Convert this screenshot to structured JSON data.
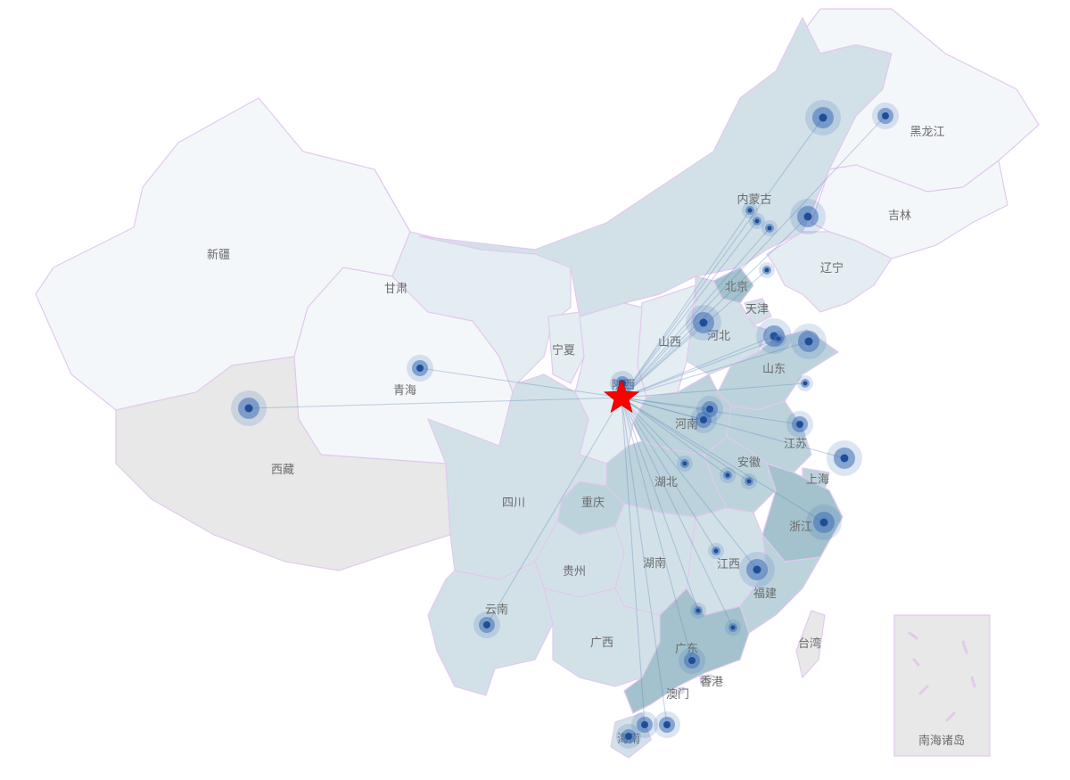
{
  "origin": {
    "name": "陕西",
    "icon": "star-icon",
    "color": "#ff0000"
  },
  "colors": {
    "route": "#5b86b8",
    "marker_core": "#1f4e99",
    "marker_ring": "#3f6fb5",
    "border": "#e2c9ee"
  },
  "provinces": [
    {
      "id": "xinjiang",
      "label": "新疆",
      "level": 1
    },
    {
      "id": "xizang",
      "label": "西藏",
      "level": 0
    },
    {
      "id": "qinghai",
      "label": "青海",
      "level": 1
    },
    {
      "id": "gansu",
      "label": "甘肃",
      "level": 2
    },
    {
      "id": "neimenggu",
      "label": "内蒙古",
      "level": 3
    },
    {
      "id": "heilongjiang",
      "label": "黑龙江",
      "level": 1
    },
    {
      "id": "jilin",
      "label": "吉林",
      "level": 1
    },
    {
      "id": "liaoning",
      "label": "辽宁",
      "level": 2
    },
    {
      "id": "beijing",
      "label": "北京",
      "level": 5
    },
    {
      "id": "tianjin",
      "label": "天津",
      "level": 3
    },
    {
      "id": "hebei",
      "label": "河北",
      "level": 3
    },
    {
      "id": "shanxi",
      "label": "山西",
      "level": 2
    },
    {
      "id": "ningxia",
      "label": "宁夏",
      "level": 2
    },
    {
      "id": "shaanxi",
      "label": "陕西",
      "level": 2
    },
    {
      "id": "shandong",
      "label": "山东",
      "level": 4
    },
    {
      "id": "henan",
      "label": "河南",
      "level": 4
    },
    {
      "id": "jiangsu",
      "label": "江苏",
      "level": 4
    },
    {
      "id": "anhui",
      "label": "安徽",
      "level": 4
    },
    {
      "id": "shanghai",
      "label": "上海",
      "level": 4
    },
    {
      "id": "zhejiang",
      "label": "浙江",
      "level": 5
    },
    {
      "id": "hubei",
      "label": "湖北",
      "level": 4
    },
    {
      "id": "chongqing",
      "label": "重庆",
      "level": 4
    },
    {
      "id": "sichuan",
      "label": "四川",
      "level": 3
    },
    {
      "id": "guizhou",
      "label": "贵州",
      "level": 3
    },
    {
      "id": "hunan",
      "label": "湖南",
      "level": 3
    },
    {
      "id": "jiangxi",
      "label": "江西",
      "level": 3
    },
    {
      "id": "fujian",
      "label": "福建",
      "level": 4
    },
    {
      "id": "yunnan",
      "label": "云南",
      "level": 3
    },
    {
      "id": "guangxi",
      "label": "广西",
      "level": 3
    },
    {
      "id": "guangdong",
      "label": "广东",
      "level": 5
    },
    {
      "id": "hainan",
      "label": "海南",
      "level": 3
    },
    {
      "id": "taiwan",
      "label": "台湾",
      "level": 0
    },
    {
      "id": "xianggang",
      "label": "香港",
      "level": 3
    },
    {
      "id": "aomen",
      "label": "澳门",
      "level": 3
    },
    {
      "id": "nanhai",
      "label": "南海诸岛",
      "level": 0
    }
  ],
  "level_colors": [
    "#e8e8e8",
    "#f4f7fa",
    "#e4edf2",
    "#d2e1e8",
    "#bcd3dc",
    "#a3c2cd"
  ],
  "destinations": [
    {
      "id": "d1",
      "size": "lg"
    },
    {
      "id": "d2",
      "size": "md"
    },
    {
      "id": "d3",
      "size": "lg"
    },
    {
      "id": "d4",
      "size": "sm"
    },
    {
      "id": "d5",
      "size": "sm"
    },
    {
      "id": "d6",
      "size": "sm"
    },
    {
      "id": "d7",
      "size": "sm"
    },
    {
      "id": "d8",
      "size": "lg"
    },
    {
      "id": "d9",
      "size": "lg"
    },
    {
      "id": "d10",
      "size": "lg"
    },
    {
      "id": "d11",
      "size": "sm"
    },
    {
      "id": "d12",
      "size": "sm"
    },
    {
      "id": "d13",
      "size": "md"
    },
    {
      "id": "d14",
      "size": "md"
    },
    {
      "id": "d15",
      "size": "md"
    },
    {
      "id": "d16",
      "size": "sm"
    },
    {
      "id": "d17",
      "size": "sm"
    },
    {
      "id": "d18",
      "size": "sm"
    },
    {
      "id": "d19",
      "size": "lg"
    },
    {
      "id": "d20",
      "size": "sm"
    },
    {
      "id": "d21",
      "size": "lg"
    },
    {
      "id": "d22",
      "size": "sm"
    },
    {
      "id": "d23",
      "size": "sm"
    },
    {
      "id": "d24",
      "size": "lg"
    },
    {
      "id": "d25",
      "size": "md"
    },
    {
      "id": "d26",
      "size": "md"
    },
    {
      "id": "d27",
      "size": "md"
    },
    {
      "id": "d28",
      "size": "lg"
    },
    {
      "id": "d29",
      "size": "md"
    },
    {
      "id": "d30",
      "size": "md"
    }
  ]
}
